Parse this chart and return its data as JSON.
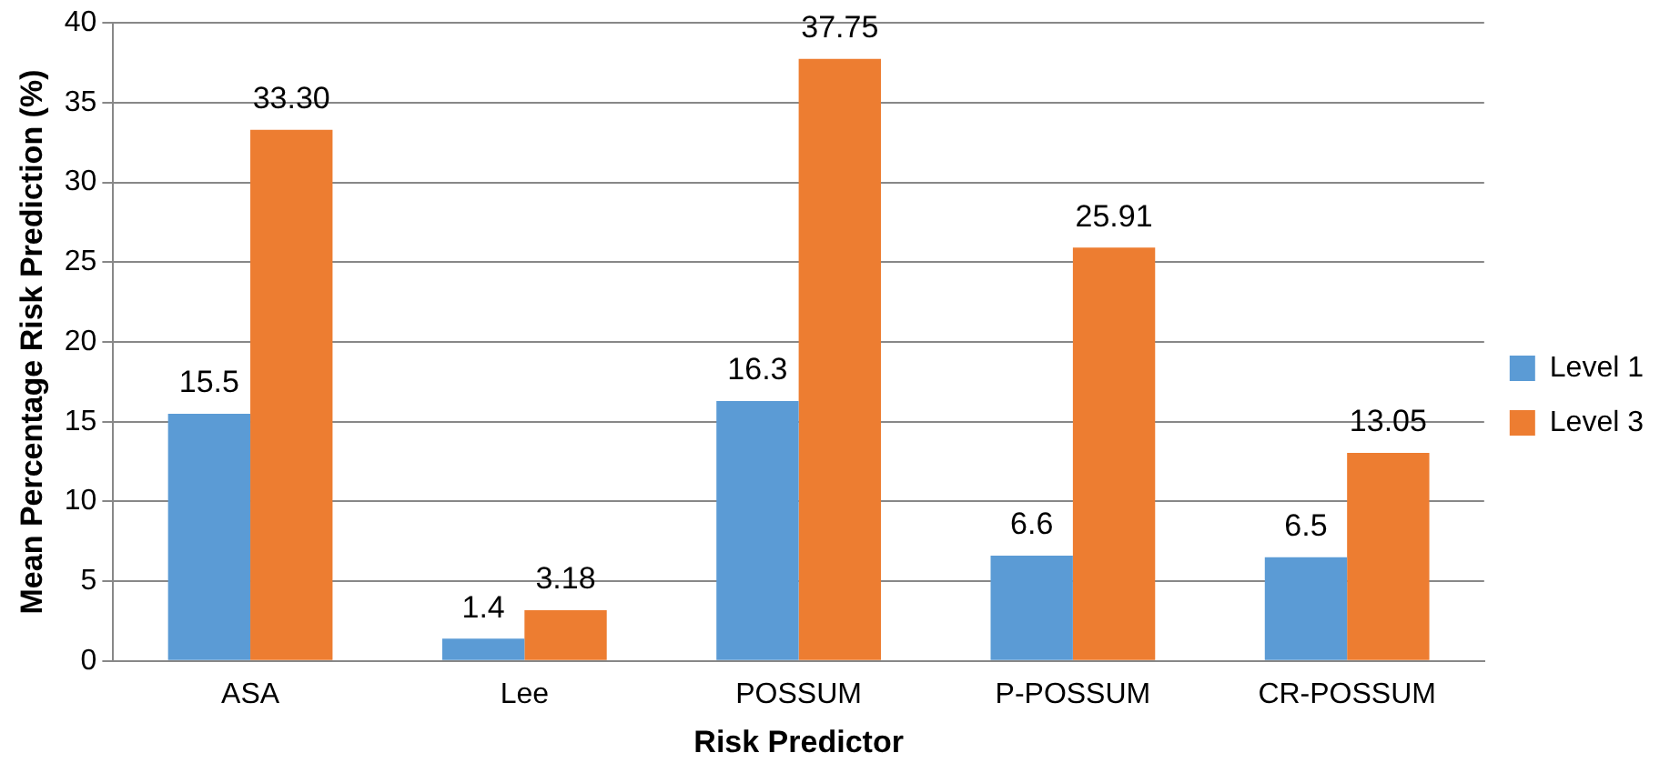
{
  "chart_data": {
    "type": "bar",
    "xlabel": "Risk Predictor",
    "ylabel": "Mean Percentage Risk Prediction (%)",
    "categories": [
      "ASA",
      "Lee",
      "POSSUM",
      "P-POSSUM",
      "CR-POSSUM"
    ],
    "series": [
      {
        "name": "Level 1",
        "color": "#5b9bd5",
        "values": [
          15.5,
          1.4,
          16.3,
          6.6,
          6.5
        ],
        "value_labels": [
          "15.5",
          "1.4",
          "16.3",
          "6.6",
          "6.5"
        ]
      },
      {
        "name": "Level 3",
        "color": "#ed7d31",
        "values": [
          33.3,
          3.18,
          37.75,
          25.91,
          13.05
        ],
        "value_labels": [
          "33.30",
          "3.18",
          "37.75",
          "25.91",
          "13.05"
        ]
      }
    ],
    "ylim": [
      0,
      40
    ],
    "yticks": [
      0,
      5,
      10,
      15,
      20,
      25,
      30,
      35,
      40
    ],
    "grid": "y",
    "legend": "right"
  }
}
